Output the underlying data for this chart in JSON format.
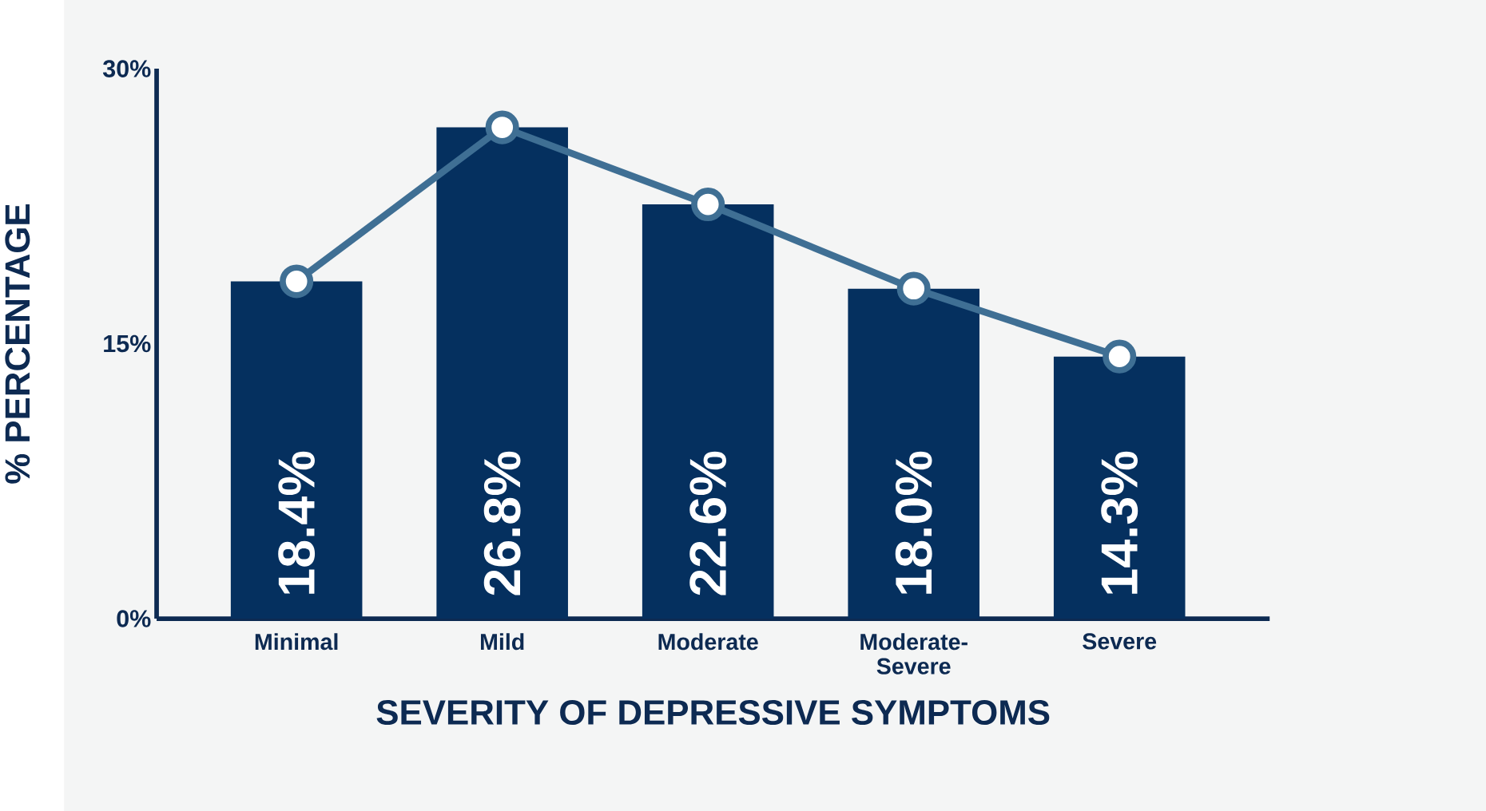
{
  "chart_data": {
    "type": "bar",
    "categories": [
      "Minimal",
      "Mild",
      "Moderate",
      "Moderate-Severe",
      "Severe"
    ],
    "series": [
      {
        "color": "#05305f",
        "values": [
          18.4,
          26.8,
          22.6,
          18.0,
          14.3
        ],
        "value_labels": [
          "18.4%",
          "26.8%",
          "22.6%",
          "18.0%",
          "14.3%"
        ]
      },
      {
        "type": "line",
        "color": "#3f6f94",
        "values": [
          18.4,
          26.8,
          22.6,
          18.0,
          14.3
        ]
      }
    ],
    "marker": "circle",
    "xlabel": "SEVERITY OF DEPRESSIVE SYMPTOMS",
    "ylabel": "% PERCENTAGE",
    "ylim": [
      0,
      30
    ],
    "yticks": [
      {
        "value": 0,
        "label": "0%"
      },
      {
        "value": 15,
        "label": "15%"
      },
      {
        "value": 30,
        "label": "30%"
      }
    ]
  }
}
